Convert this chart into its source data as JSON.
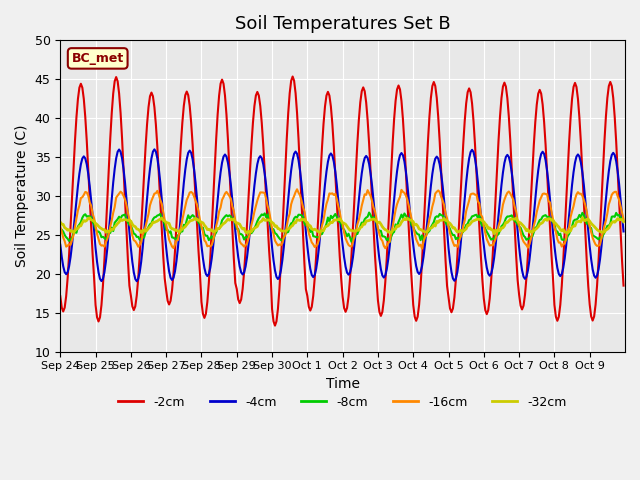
{
  "title": "Soil Temperatures Set B",
  "xlabel": "Time",
  "ylabel": "Soil Temperature (C)",
  "ylim": [
    10,
    50
  ],
  "annotation": "BC_met",
  "background_color": "#e8e8e8",
  "series": {
    "-2cm": {
      "color": "#dd0000",
      "lw": 1.5
    },
    "-4cm": {
      "color": "#0000cc",
      "lw": 1.5
    },
    "-8cm": {
      "color": "#00cc00",
      "lw": 1.5
    },
    "-16cm": {
      "color": "#ff8800",
      "lw": 1.5
    },
    "-32cm": {
      "color": "#cccc00",
      "lw": 2.0
    }
  },
  "tick_labels": [
    "Sep 24",
    "Sep 25",
    "Sep 26",
    "Sep 27",
    "Sep 28",
    "Sep 29",
    "Sep 30",
    "Oct 1",
    "Oct 2",
    "Oct 3",
    "Oct 4",
    "Oct 5",
    "Oct 6",
    "Oct 7",
    "Oct 8",
    "Oct 9"
  ],
  "yticks": [
    10,
    15,
    20,
    25,
    30,
    35,
    40,
    45,
    50
  ]
}
